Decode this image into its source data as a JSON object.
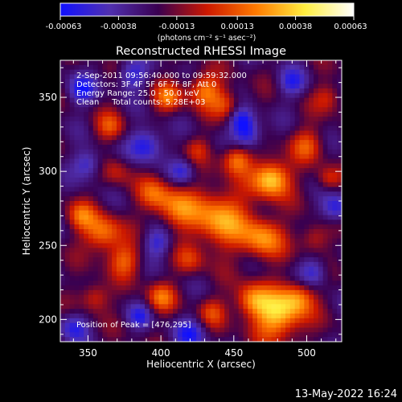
{
  "chart_data": {
    "type": "heatmap",
    "title": "Reconstructed RHESSI Image",
    "xlabel": "Heliocentric X (arcsec)",
    "ylabel": "Heliocentric Y (arcsec)",
    "x_ticks": [
      350,
      400,
      450,
      500
    ],
    "y_ticks": [
      200,
      250,
      300,
      350
    ],
    "xlim": [
      331,
      524
    ],
    "ylim": [
      185,
      375
    ],
    "colorbar": {
      "tick_labels": [
        "-0.00063",
        "-0.00038",
        "-0.00013",
        "0.00013",
        "0.00038",
        "0.00063"
      ],
      "range": [
        -0.00063,
        0.00063
      ],
      "unit_label": "(photons cm⁻² s⁻¹ asec⁻²)",
      "colors": [
        "#1010ff",
        "#5030b0",
        "#3a0050",
        "#cc1800",
        "#ff7a00",
        "#ffee40",
        "#ffffff"
      ]
    },
    "annotations": [
      "2-Sep-2011 09:56:40.000 to 09:59:32.000",
      "Detectors: 3F 4F 5F 6F 7F 8F, Att 0",
      "Energy Range: 25.0 - 50.0 keV",
      "Clean     Total counts: 5.28E+03"
    ],
    "peak_label": "Position of Peak = [476,295]",
    "grid": false,
    "peak": {
      "x": 476,
      "y": 295
    },
    "blobs": [
      {
        "x": 476,
        "y": 295,
        "v": 0.00063,
        "r": 9
      },
      {
        "x": 452,
        "y": 308,
        "v": 0.00042,
        "r": 7
      },
      {
        "x": 440,
        "y": 268,
        "v": 0.0005,
        "r": 14
      },
      {
        "x": 470,
        "y": 255,
        "v": 0.00045,
        "r": 10
      },
      {
        "x": 480,
        "y": 203,
        "v": 0.00058,
        "r": 12
      },
      {
        "x": 462,
        "y": 213,
        "v": 0.0004,
        "r": 8
      },
      {
        "x": 495,
        "y": 215,
        "v": 0.00034,
        "r": 8
      },
      {
        "x": 360,
        "y": 258,
        "v": 0.00044,
        "r": 9
      },
      {
        "x": 345,
        "y": 270,
        "v": 0.00032,
        "r": 7
      },
      {
        "x": 410,
        "y": 275,
        "v": 0.00036,
        "r": 10
      },
      {
        "x": 395,
        "y": 285,
        "v": 0.0003,
        "r": 8
      },
      {
        "x": 375,
        "y": 240,
        "v": 0.00034,
        "r": 8
      },
      {
        "x": 355,
        "y": 215,
        "v": 0.0003,
        "r": 7
      },
      {
        "x": 400,
        "y": 215,
        "v": 0.00035,
        "r": 7
      },
      {
        "x": 435,
        "y": 205,
        "v": 0.00026,
        "r": 7
      },
      {
        "x": 430,
        "y": 355,
        "v": 0.00042,
        "r": 8
      },
      {
        "x": 445,
        "y": 345,
        "v": 0.0003,
        "r": 7
      },
      {
        "x": 405,
        "y": 350,
        "v": 0.00036,
        "r": 7
      },
      {
        "x": 365,
        "y": 330,
        "v": 0.00028,
        "r": 7
      },
      {
        "x": 500,
        "y": 318,
        "v": 0.0003,
        "r": 8
      },
      {
        "x": 515,
        "y": 295,
        "v": 0.00026,
        "r": 6
      },
      {
        "x": 505,
        "y": 255,
        "v": 0.00026,
        "r": 7
      },
      {
        "x": 370,
        "y": 300,
        "v": 0.0002,
        "r": 7
      },
      {
        "x": 425,
        "y": 315,
        "v": 0.00018,
        "r": 6
      },
      {
        "x": 420,
        "y": 240,
        "v": 0.00022,
        "r": 7
      },
      {
        "x": 515,
        "y": 350,
        "v": 0.00024,
        "r": 7
      },
      {
        "x": 390,
        "y": 318,
        "v": -0.0004,
        "r": 8
      },
      {
        "x": 460,
        "y": 325,
        "v": -0.00038,
        "r": 7
      },
      {
        "x": 398,
        "y": 252,
        "v": -0.0003,
        "r": 7
      },
      {
        "x": 455,
        "y": 335,
        "v": -0.00034,
        "r": 6
      },
      {
        "x": 345,
        "y": 355,
        "v": -0.00035,
        "r": 7
      },
      {
        "x": 380,
        "y": 365,
        "v": -0.00032,
        "r": 7
      },
      {
        "x": 520,
        "y": 275,
        "v": -0.00035,
        "r": 7
      },
      {
        "x": 505,
        "y": 232,
        "v": -0.0003,
        "r": 7
      },
      {
        "x": 420,
        "y": 190,
        "v": -0.0003,
        "r": 8
      },
      {
        "x": 340,
        "y": 195,
        "v": -0.0003,
        "r": 7
      },
      {
        "x": 350,
        "y": 305,
        "v": -0.00032,
        "r": 7
      },
      {
        "x": 415,
        "y": 300,
        "v": -0.00026,
        "r": 6
      },
      {
        "x": 490,
        "y": 360,
        "v": -0.00028,
        "r": 7
      },
      {
        "x": 385,
        "y": 202,
        "v": -0.00026,
        "r": 6
      }
    ]
  },
  "footer": {
    "timestamp": "13-May-2022 16:24"
  }
}
